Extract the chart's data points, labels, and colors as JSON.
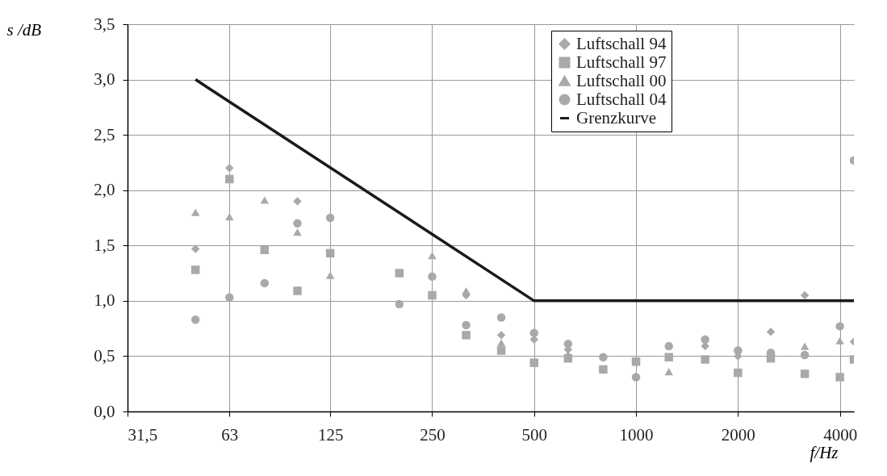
{
  "chart_data": {
    "type": "scatter",
    "xlabel": "f/Hz",
    "ylabel": "s /dB",
    "log": "x",
    "xlim": [
      31.5,
      4400
    ],
    "xticks": [
      {
        "value": 31.5,
        "label": "31,5"
      },
      63,
      125,
      250,
      500,
      1000,
      2000,
      4000
    ],
    "ylim": [
      0,
      3.5
    ],
    "yticks": [
      {
        "value": 0,
        "label": "0,0"
      },
      {
        "value": 0.5,
        "label": "0,5"
      },
      {
        "value": 1,
        "label": "1,0"
      },
      {
        "value": 1.5,
        "label": "1,5"
      },
      {
        "value": 2,
        "label": "2,0"
      },
      {
        "value": 2.5,
        "label": "2,5"
      },
      {
        "value": 3,
        "label": "3,0"
      },
      {
        "value": 3.5,
        "label": "3,5"
      }
    ],
    "grid": true,
    "legend": "top right",
    "series": [
      {
        "name": "Luftschall 94",
        "color": "#a9a9a9",
        "marker": "diamond",
        "x": [
          50,
          63,
          100,
          125,
          315,
          400,
          500,
          630,
          800,
          1600,
          2000,
          2500,
          3150,
          4000,
          4400
        ],
        "values": [
          1.47,
          2.2,
          1.9,
          null,
          1.05,
          0.69,
          0.65,
          0.56,
          null,
          0.59,
          0.5,
          0.72,
          1.05,
          null,
          0.63
        ]
      },
      {
        "name": "Luftschall 97",
        "color": "#a9a9a9",
        "marker": "square",
        "x": [
          50,
          63,
          80,
          100,
          125,
          200,
          250,
          315,
          400,
          500,
          630,
          800,
          1000,
          1250,
          1600,
          2000,
          2500,
          3150,
          4000,
          4400
        ],
        "values": [
          1.28,
          2.1,
          1.46,
          1.09,
          1.43,
          1.25,
          1.05,
          0.69,
          0.55,
          0.44,
          0.48,
          0.38,
          0.45,
          0.49,
          0.47,
          0.35,
          0.48,
          0.34,
          0.31,
          0.47
        ]
      },
      {
        "name": "Luftschall 00",
        "color": "#a9a9a9",
        "marker": "triangle",
        "x": [
          50,
          63,
          80,
          100,
          125,
          200,
          250,
          315,
          400,
          630,
          1250,
          3150,
          4000
        ],
        "values": [
          1.8,
          1.76,
          1.91,
          1.62,
          1.23,
          null,
          1.41,
          1.09,
          0.62,
          0.52,
          0.36,
          0.59,
          0.64
        ]
      },
      {
        "name": "Luftschall 04",
        "color": "#a9a9a9",
        "marker": "circle",
        "x": [
          50,
          63,
          80,
          100,
          125,
          200,
          250,
          315,
          400,
          500,
          630,
          800,
          1000,
          1250,
          1600,
          2000,
          2500,
          3150,
          4000,
          4400
        ],
        "values": [
          0.83,
          1.03,
          1.16,
          1.7,
          1.75,
          0.97,
          1.22,
          0.78,
          0.85,
          0.71,
          0.61,
          0.49,
          0.31,
          0.59,
          0.65,
          0.55,
          0.53,
          0.51,
          0.77,
          2.27
        ]
      },
      {
        "name": "Grenzkurve",
        "color": "#1a1a1a",
        "type": "line",
        "line_style": "solid",
        "marker": "none",
        "x": [
          50,
          500,
          4400
        ],
        "values": [
          3.0,
          1.0,
          1.0
        ]
      }
    ]
  }
}
